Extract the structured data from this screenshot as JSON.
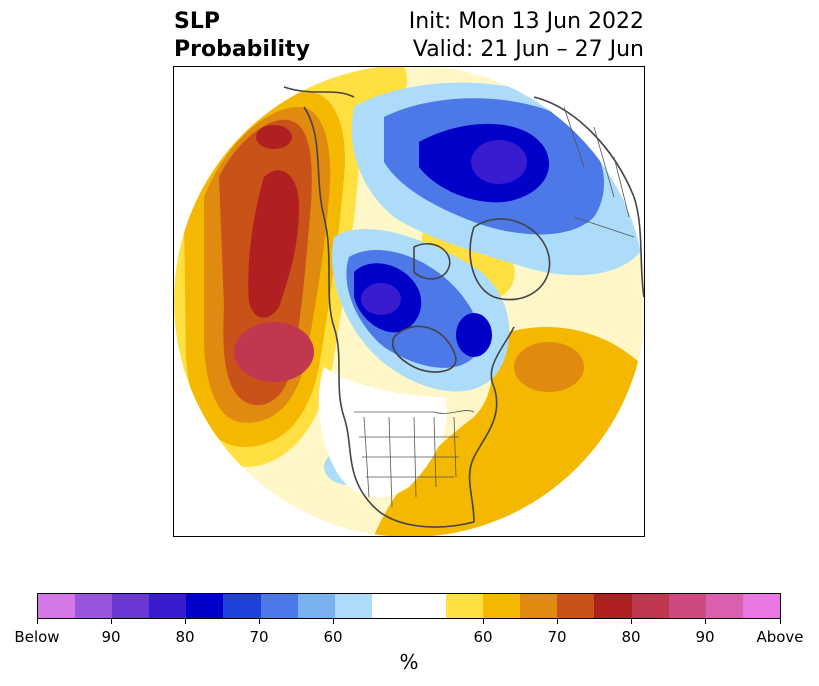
{
  "title": {
    "left_line1": "SLP",
    "left_line2": "Probability",
    "right_line1": "Init: Mon 13 Jun 2022",
    "right_line2": "Valid: 21 Jun – 27 Jun"
  },
  "colorbar": {
    "units": "%",
    "tick_labels": [
      "Below",
      "90",
      "80",
      "70",
      "60",
      "60",
      "70",
      "80",
      "90",
      "Above"
    ],
    "colors": [
      "#d478e8",
      "#9a54e0",
      "#6b38d8",
      "#3a1cd0",
      "#0000c8",
      "#2040dc",
      "#4c78e8",
      "#78b0f0",
      "#acdcfa",
      "#ffffff",
      "#ffe040",
      "#f4b800",
      "#e08a10",
      "#c85218",
      "#b02020",
      "#c03850",
      "#cc4a80",
      "#dc60b0",
      "#e878e0"
    ]
  },
  "map": {
    "projection": "polar-stereographic",
    "region": "Northern Hemisphere (North America centered)",
    "variable": "Sea level pressure tercile probability",
    "colors": {
      "above": "#b02020",
      "below": "#0000c8",
      "border": "#444444"
    }
  }
}
